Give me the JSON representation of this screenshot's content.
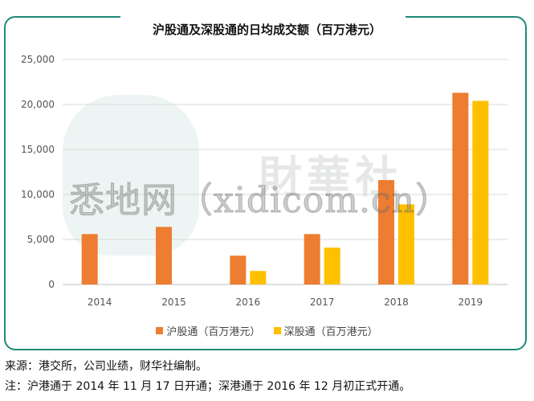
{
  "chart_data": {
    "type": "bar",
    "title": "沪股通及深股通的日均成交额（百万港元）",
    "categories": [
      "2014",
      "2015",
      "2016",
      "2017",
      "2018",
      "2019"
    ],
    "series": [
      {
        "name": "沪股通（百万港元）",
        "color": "#ed7d31",
        "values": [
          5600,
          6400,
          3200,
          5600,
          11600,
          21300
        ]
      },
      {
        "name": "深股通（百万港元）",
        "color": "#ffc000",
        "values": [
          null,
          null,
          1500,
          4100,
          8900,
          20400
        ]
      }
    ],
    "ylim": [
      0,
      25000
    ],
    "yticks": [
      0,
      5000,
      10000,
      15000,
      20000,
      25000
    ],
    "ytick_labels": [
      "0",
      "5,000",
      "10,000",
      "15,000",
      "20,000",
      "25,000"
    ],
    "grid": true,
    "legend": "bottom"
  },
  "notes": {
    "source": "来源：港交所，公司业绩，财华社编制。",
    "remark": "注：沪港通于 2014 年 11 月 17 日开通；深港通于 2016 年 12 月初正式开通。"
  },
  "watermark": {
    "brand": "財華社",
    "site": "悉地网（xidicom.cn）"
  }
}
